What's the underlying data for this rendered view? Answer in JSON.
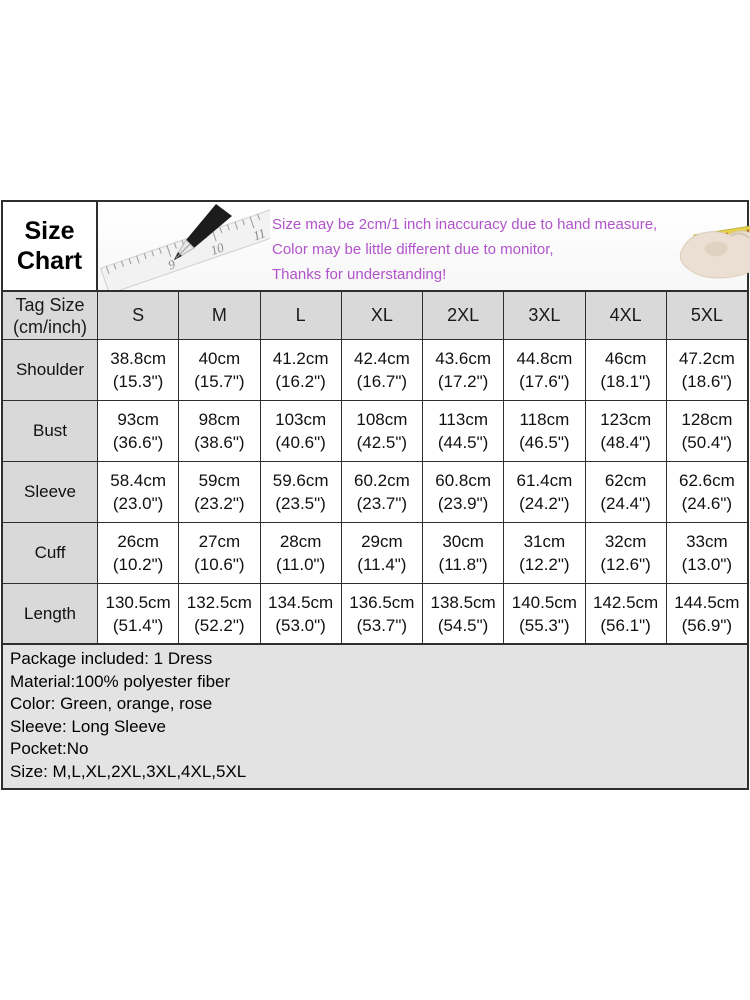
{
  "title": {
    "line1": "Size",
    "line2": "Chart"
  },
  "banner": {
    "notes": [
      "Size may be 2cm/1 inch inaccuracy due to hand measure,",
      "Color may be little different due to monitor,",
      "Thanks for understanding!"
    ],
    "icons": [
      "pencil-ruler-illustration",
      "hand-tape-measure-illustration"
    ]
  },
  "table": {
    "corner": {
      "line1": "Tag Size",
      "line2": "(cm/inch)"
    }
  },
  "chart_data": {
    "type": "table",
    "title": "Size Chart",
    "unit_note": "Tag Size (cm/inch)",
    "columns": [
      "S",
      "M",
      "L",
      "XL",
      "2XL",
      "3XL",
      "4XL",
      "5XL"
    ],
    "rows": [
      {
        "label": "Shoulder",
        "cm": [
          "38.8cm",
          "40cm",
          "41.2cm",
          "42.4cm",
          "43.6cm",
          "44.8cm",
          "46cm",
          "47.2cm"
        ],
        "inch": [
          "(15.3\")",
          "(15.7\")",
          "(16.2\")",
          "(16.7\")",
          "(17.2\")",
          "(17.6\")",
          "(18.1\")",
          "(18.6\")"
        ]
      },
      {
        "label": "Bust",
        "cm": [
          "93cm",
          "98cm",
          "103cm",
          "108cm",
          "113cm",
          "118cm",
          "123cm",
          "128cm"
        ],
        "inch": [
          "(36.6\")",
          "(38.6\")",
          "(40.6\")",
          "(42.5\")",
          "(44.5\")",
          "(46.5\")",
          "(48.4\")",
          "(50.4\")"
        ]
      },
      {
        "label": "Sleeve",
        "cm": [
          "58.4cm",
          "59cm",
          "59.6cm",
          "60.2cm",
          "60.8cm",
          "61.4cm",
          "62cm",
          "62.6cm"
        ],
        "inch": [
          "(23.0\")",
          "(23.2\")",
          "(23.5\")",
          "(23.7\")",
          "(23.9\")",
          "(24.2\")",
          "(24.4\")",
          "(24.6\")"
        ]
      },
      {
        "label": "Cuff",
        "cm": [
          "26cm",
          "27cm",
          "28cm",
          "29cm",
          "30cm",
          "31cm",
          "32cm",
          "33cm"
        ],
        "inch": [
          "(10.2\")",
          "(10.6\")",
          "(11.0\")",
          "(11.4\")",
          "(11.8\")",
          "(12.2\")",
          "(12.6\")",
          "(13.0\")"
        ]
      },
      {
        "label": "Length",
        "cm": [
          "130.5cm",
          "132.5cm",
          "134.5cm",
          "136.5cm",
          "138.5cm",
          "140.5cm",
          "142.5cm",
          "144.5cm"
        ],
        "inch": [
          "(51.4\")",
          "(52.2\")",
          "(53.0\")",
          "(53.7\")",
          "(54.5\")",
          "(55.3\")",
          "(56.1\")",
          "(56.9\")"
        ]
      }
    ]
  },
  "footer": {
    "lines": [
      "Package included: 1 Dress",
      "Material:100% polyester fiber",
      "Color: Green, orange, rose",
      "Sleeve: Long Sleeve",
      "Pocket:No",
      "Size: M,L,XL,2XL,3XL,4XL,5XL"
    ]
  },
  "colors": {
    "accent_red": "#ff0000",
    "note_purple": "#b154cb",
    "header_bg": "#d9d9d9",
    "cell_bg": "#ffffff",
    "footer_bg": "#e3e3e3",
    "border": "#2e2e2e",
    "tape_yellow": "#e3d34f"
  }
}
